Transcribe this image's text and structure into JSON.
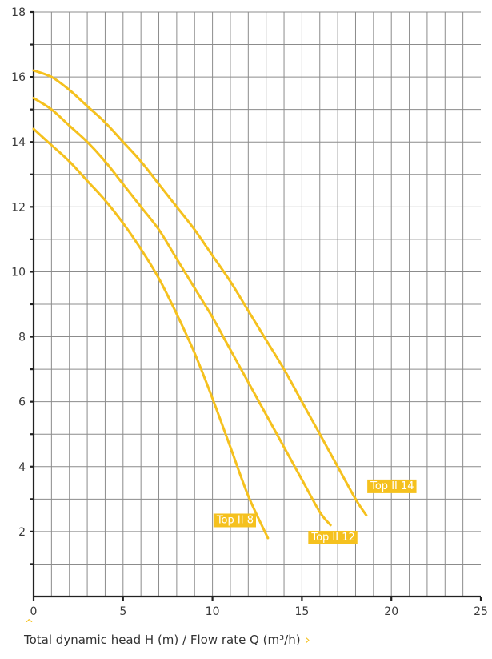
{
  "chart_data": {
    "type": "line",
    "xlim": [
      0,
      25
    ],
    "ylim": [
      0,
      18
    ],
    "x_ticks": [
      "0",
      "5",
      "10",
      "15",
      "20",
      "25"
    ],
    "y_ticks": [
      "2",
      "4",
      "6",
      "8",
      "10",
      "12",
      "14",
      "16",
      "18"
    ],
    "grid": true,
    "series": [
      {
        "name": "Top II 8",
        "points": [
          [
            0,
            14.4
          ],
          [
            1,
            13.9
          ],
          [
            2,
            13.4
          ],
          [
            3,
            12.8
          ],
          [
            4,
            12.2
          ],
          [
            5,
            11.5
          ],
          [
            6,
            10.7
          ],
          [
            7,
            9.8
          ],
          [
            8,
            8.7
          ],
          [
            9,
            7.5
          ],
          [
            10,
            6.1
          ],
          [
            11,
            4.6
          ],
          [
            12,
            3.1
          ],
          [
            13.1,
            1.8
          ]
        ]
      },
      {
        "name": "Top II 12",
        "points": [
          [
            0,
            15.35
          ],
          [
            1,
            15.0
          ],
          [
            2,
            14.5
          ],
          [
            3,
            14.0
          ],
          [
            4,
            13.4
          ],
          [
            5,
            12.7
          ],
          [
            6,
            12.0
          ],
          [
            7,
            11.3
          ],
          [
            8,
            10.4
          ],
          [
            9,
            9.5
          ],
          [
            10,
            8.6
          ],
          [
            11,
            7.6
          ],
          [
            12,
            6.6
          ],
          [
            13,
            5.6
          ],
          [
            14,
            4.6
          ],
          [
            15,
            3.6
          ],
          [
            16,
            2.6
          ],
          [
            16.6,
            2.2
          ]
        ]
      },
      {
        "name": "Top II 14",
        "points": [
          [
            0,
            16.2
          ],
          [
            1,
            16.0
          ],
          [
            2,
            15.6
          ],
          [
            3,
            15.1
          ],
          [
            4,
            14.6
          ],
          [
            5,
            14.0
          ],
          [
            6,
            13.4
          ],
          [
            7,
            12.7
          ],
          [
            8,
            12.0
          ],
          [
            9,
            11.3
          ],
          [
            10,
            10.5
          ],
          [
            11,
            9.7
          ],
          [
            12,
            8.8
          ],
          [
            13,
            7.9
          ],
          [
            14,
            7.0
          ],
          [
            15,
            6.0
          ],
          [
            16,
            5.0
          ],
          [
            17,
            4.0
          ],
          [
            18,
            3.0
          ],
          [
            18.6,
            2.5
          ]
        ]
      }
    ],
    "labels": [
      {
        "text": "Top II 8",
        "x": 10.1,
        "y": 2.38
      },
      {
        "text": "Top II 12",
        "x": 15.4,
        "y": 1.85
      },
      {
        "text": "Top II 14",
        "x": 18.7,
        "y": 3.43
      }
    ],
    "xlabel": "Total dynamic head H (m) / Flow rate Q (m³/h)"
  },
  "caption": {
    "text": "Total dynamic head H (m) / Flow rate Q (m³/h)",
    "arrow": "›",
    "up_arrow": "^"
  }
}
